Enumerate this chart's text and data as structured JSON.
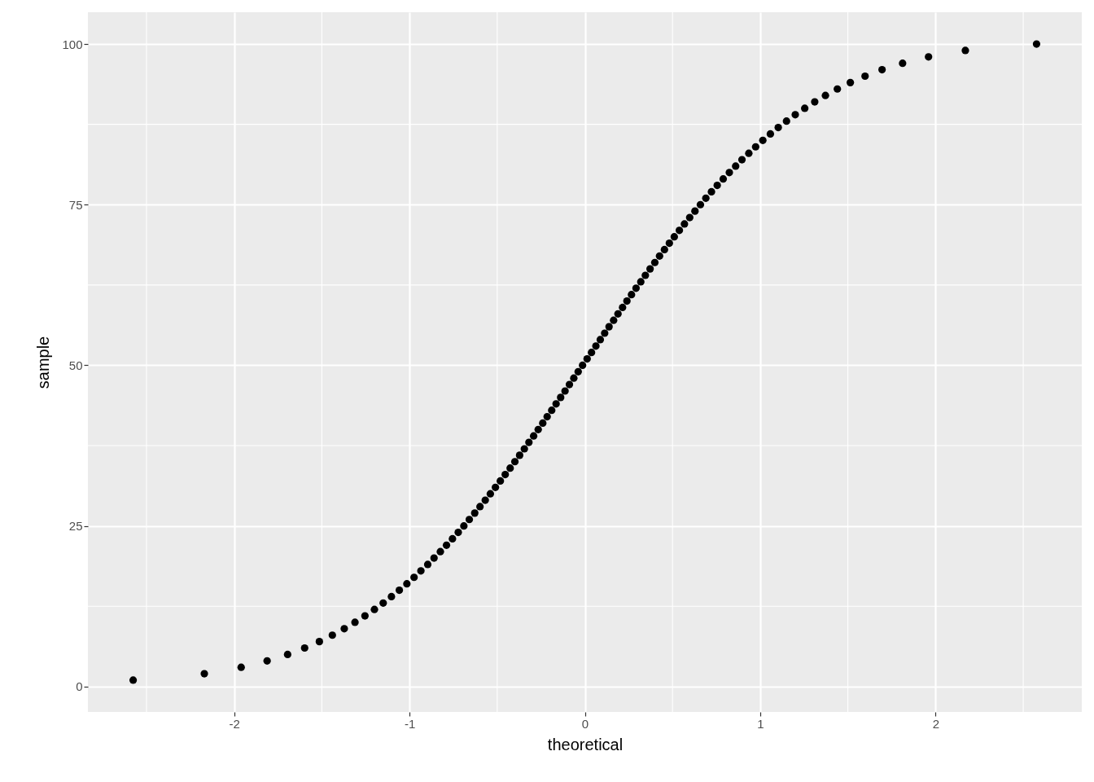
{
  "chart_data": {
    "type": "scatter",
    "xlabel": "theoretical",
    "ylabel": "sample",
    "marker": "circle",
    "grid": true,
    "xlim": [
      -2.834,
      2.834
    ],
    "ylim": [
      -3.95,
      104.95
    ],
    "xticks": [
      {
        "value": -2.5,
        "label": null
      },
      -2,
      {
        "value": -1.5,
        "label": null
      },
      -1,
      {
        "value": -0.5,
        "label": null
      },
      0,
      {
        "value": 0.5,
        "label": null
      },
      1,
      {
        "value": 1.5,
        "label": null
      },
      2,
      {
        "value": 2.5,
        "label": null
      }
    ],
    "yticks": [
      0,
      {
        "value": 12.5,
        "label": null
      },
      25,
      {
        "value": 37.5,
        "label": null
      },
      50,
      {
        "value": 62.5,
        "label": null
      },
      75,
      {
        "value": 87.5,
        "label": null
      },
      100
    ],
    "series": [
      {
        "color": "#000000",
        "x": [
          -2.576,
          -2.17,
          -1.96,
          -1.812,
          -1.695,
          -1.598,
          -1.514,
          -1.44,
          -1.372,
          -1.311,
          -1.254,
          -1.2,
          -1.15,
          -1.103,
          -1.058,
          -1.015,
          -0.974,
          -0.935,
          -0.896,
          -0.86,
          -0.824,
          -0.789,
          -0.755,
          -0.722,
          -0.69,
          -0.659,
          -0.628,
          -0.598,
          -0.568,
          -0.539,
          -0.51,
          -0.482,
          -0.454,
          -0.426,
          -0.399,
          -0.372,
          -0.345,
          -0.319,
          -0.292,
          -0.266,
          -0.24,
          -0.215,
          -0.189,
          -0.164,
          -0.138,
          -0.113,
          -0.088,
          -0.063,
          -0.038,
          -0.013,
          0.013,
          0.038,
          0.063,
          0.088,
          0.113,
          0.138,
          0.164,
          0.189,
          0.215,
          0.24,
          0.266,
          0.292,
          0.319,
          0.345,
          0.372,
          0.399,
          0.426,
          0.454,
          0.482,
          0.51,
          0.539,
          0.568,
          0.598,
          0.628,
          0.659,
          0.69,
          0.722,
          0.755,
          0.789,
          0.824,
          0.86,
          0.896,
          0.935,
          0.974,
          1.015,
          1.058,
          1.103,
          1.15,
          1.2,
          1.254,
          1.311,
          1.372,
          1.44,
          1.514,
          1.598,
          1.695,
          1.812,
          1.96,
          2.17,
          2.576
        ],
        "values": [
          1,
          2,
          3,
          4,
          5,
          6,
          7,
          8,
          9,
          10,
          11,
          12,
          13,
          14,
          15,
          16,
          17,
          18,
          19,
          20,
          21,
          22,
          23,
          24,
          25,
          26,
          27,
          28,
          29,
          30,
          31,
          32,
          33,
          34,
          35,
          36,
          37,
          38,
          39,
          40,
          41,
          42,
          43,
          44,
          45,
          46,
          47,
          48,
          49,
          50,
          51,
          52,
          53,
          54,
          55,
          56,
          57,
          58,
          59,
          60,
          61,
          62,
          63,
          64,
          65,
          66,
          67,
          68,
          69,
          70,
          71,
          72,
          73,
          74,
          75,
          76,
          77,
          78,
          79,
          80,
          81,
          82,
          83,
          84,
          85,
          86,
          87,
          88,
          89,
          90,
          91,
          92,
          93,
          94,
          95,
          96,
          97,
          98,
          99,
          100
        ]
      }
    ]
  }
}
